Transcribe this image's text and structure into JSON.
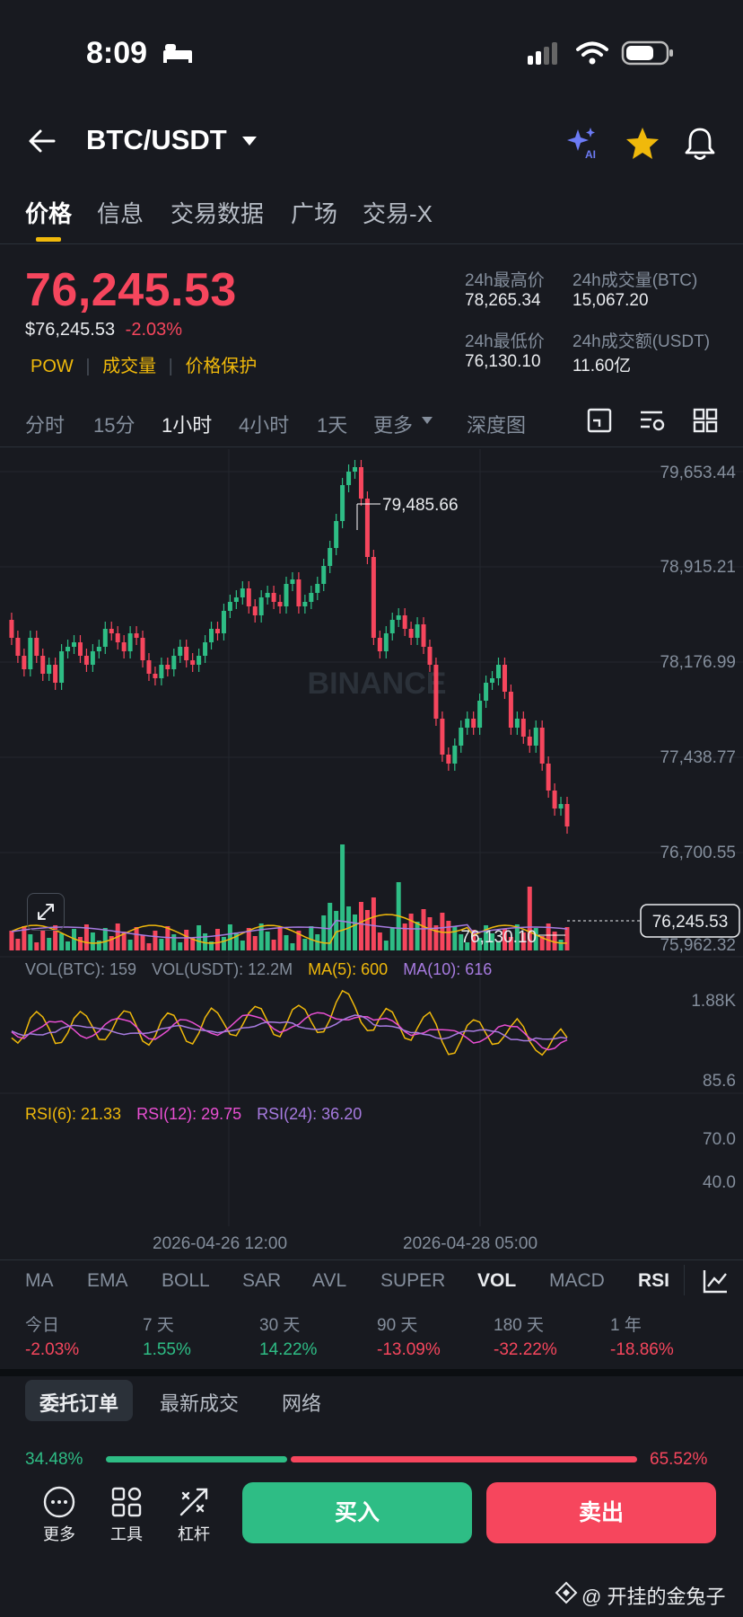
{
  "status_bar": {
    "time": "8:09"
  },
  "header": {
    "pair": "BTC/USDT",
    "ai_label": "AI"
  },
  "tabs": [
    {
      "label": "价格",
      "active": true
    },
    {
      "label": "信息"
    },
    {
      "label": "交易数据"
    },
    {
      "label": "广场"
    },
    {
      "label": "交易-X"
    }
  ],
  "price": {
    "last": "76,245.53",
    "usd": "$76,245.53",
    "change": "-2.03%",
    "tags": [
      "POW",
      "成交量",
      "价格保护"
    ]
  },
  "stats": {
    "high_label": "24h最高价",
    "high_value": "78,265.34",
    "vol_btc_label": "24h成交量(BTC)",
    "vol_btc_value": "15,067.20",
    "low_label": "24h最低价",
    "low_value": "76,130.10",
    "vol_usdt_label": "24h成交额(USDT)",
    "vol_usdt_value": "11.60亿"
  },
  "timeframes": [
    {
      "label": "分时"
    },
    {
      "label": "15分"
    },
    {
      "label": "1小时",
      "active": true
    },
    {
      "label": "4小时"
    },
    {
      "label": "1天"
    },
    {
      "label": "更多"
    },
    {
      "label": "深度图"
    }
  ],
  "chart": {
    "watermark": "BINANCE",
    "y_axis": [
      "79,653.44",
      "78,915.21",
      "78,176.99",
      "77,438.77",
      "76,700.55",
      "75,962.32"
    ],
    "high_marker": "79,485.66",
    "low_marker": "76,130.10",
    "current_price": "76,245.53",
    "time_labels": [
      "2026-04-26 12:00",
      "2026-04-28 05:00"
    ]
  },
  "volume": {
    "legend_btc": "VOL(BTC): 159",
    "legend_usdt": "VOL(USDT): 12.2M",
    "legend_ma5": "MA(5): 600",
    "legend_ma10": "MA(10): 616",
    "axis_top": "1.88K",
    "axis_bottom": "85.6"
  },
  "rsi": {
    "legend_6": "RSI(6): 21.33",
    "legend_12": "RSI(12): 29.75",
    "legend_24": "RSI(24): 36.20",
    "axis_70": "70.0",
    "axis_40": "40.0"
  },
  "indicator_tabs": [
    {
      "label": "MA"
    },
    {
      "label": "EMA"
    },
    {
      "label": "BOLL"
    },
    {
      "label": "SAR"
    },
    {
      "label": "AVL"
    },
    {
      "label": "SUPER"
    },
    {
      "label": "VOL",
      "active": true
    },
    {
      "label": "MACD"
    },
    {
      "label": "RSI",
      "active": true
    }
  ],
  "performance": [
    {
      "label": "今日",
      "value": "-2.03%",
      "dir": "down"
    },
    {
      "label": "7 天",
      "value": "1.55%",
      "dir": "up"
    },
    {
      "label": "30 天",
      "value": "14.22%",
      "dir": "up"
    },
    {
      "label": "90 天",
      "value": "-13.09%",
      "dir": "down"
    },
    {
      "label": "180 天",
      "value": "-32.22%",
      "dir": "down"
    },
    {
      "label": "1 年",
      "value": "-18.86%",
      "dir": "down"
    }
  ],
  "order_tabs": [
    {
      "label": "委托订单",
      "active": true
    },
    {
      "label": "最新成交"
    },
    {
      "label": "网络"
    }
  ],
  "order_ratio": {
    "buy": "34.48%",
    "sell": "65.52%",
    "buy_fraction": 0.3448
  },
  "bottom_bar": {
    "more": "更多",
    "tools": "工具",
    "leverage": "杠杆",
    "buy": "买入",
    "sell": "卖出"
  },
  "watermark_footer": "@ 开挂的金兔子",
  "colors": {
    "up": "#2EBD85",
    "down": "#F6465D",
    "accent": "#F0B90B",
    "bg": "#181A20"
  }
}
